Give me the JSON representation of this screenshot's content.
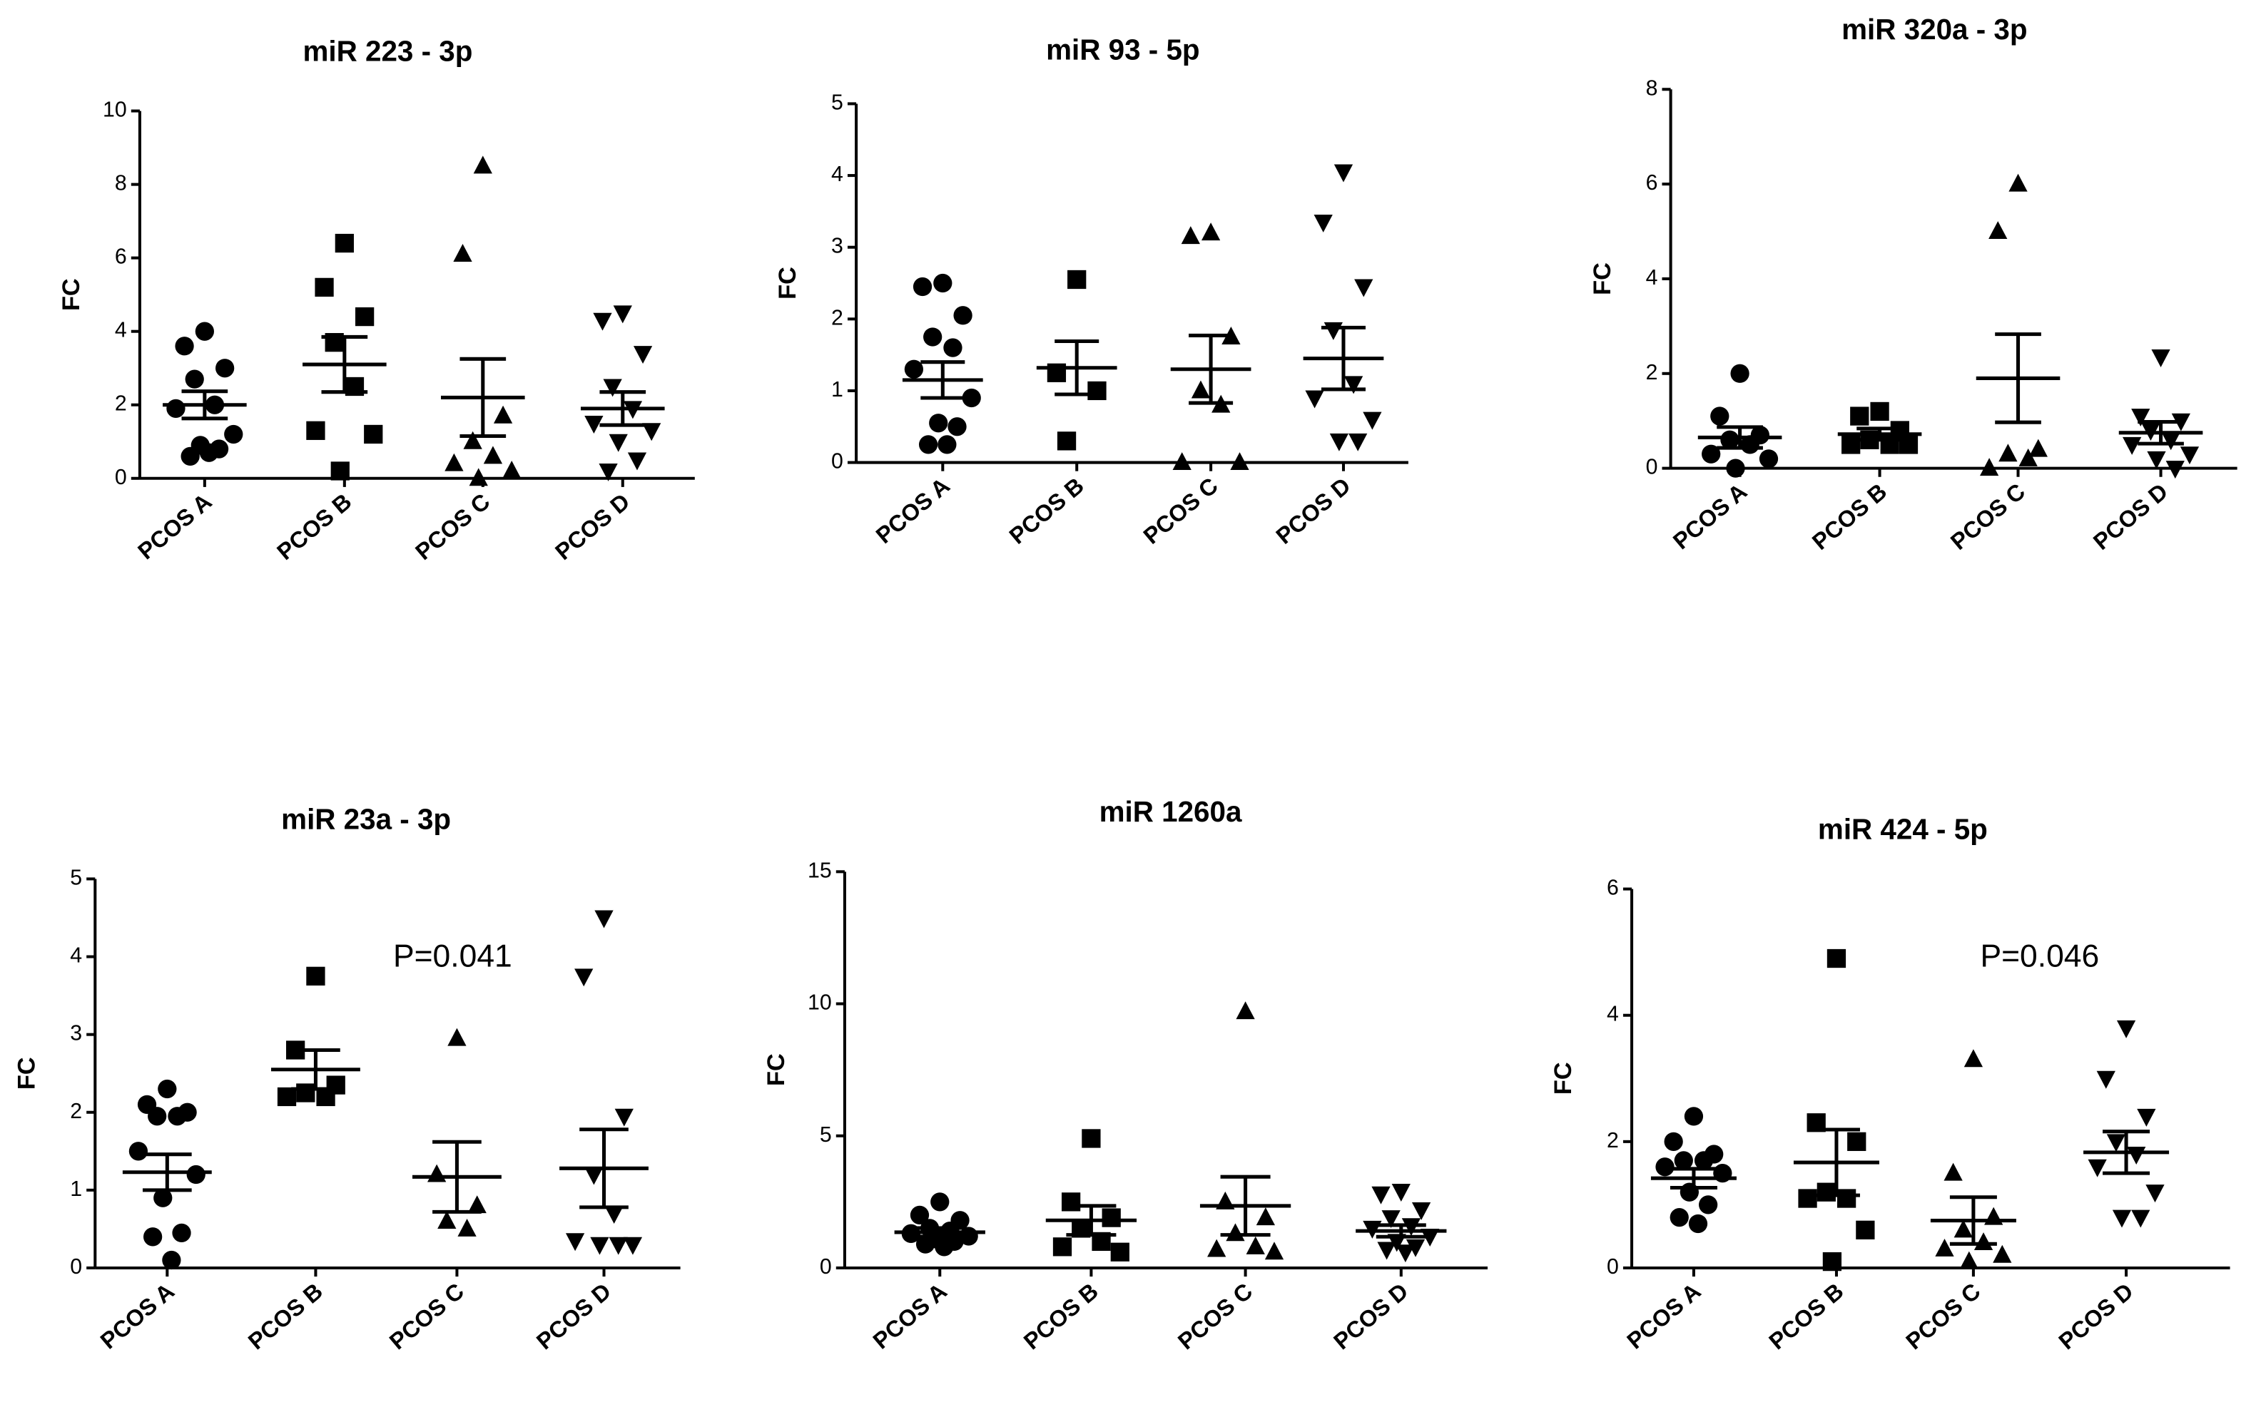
{
  "chart_data": [
    {
      "type": "scatter",
      "title": "miR 223 - 3p",
      "ylabel": "FC",
      "categories": [
        "PCOS A",
        "PCOS B",
        "PCOS C",
        "PCOS D"
      ],
      "markers": [
        "circle",
        "square",
        "triangle",
        "triangle-down"
      ],
      "color": "#000000",
      "points": [
        [
          4.0,
          3.6,
          3.0,
          2.7,
          2.0,
          1.9,
          1.2,
          0.9,
          0.8,
          0.6,
          0.7
        ],
        [
          6.4,
          5.2,
          4.4,
          3.7,
          2.5,
          1.3,
          1.2,
          0.2
        ],
        [
          8.5,
          6.1,
          1.7,
          1.0,
          0.6,
          0.4,
          0.2,
          0.0
        ],
        [
          4.5,
          4.3,
          3.4,
          2.5,
          1.9,
          1.5,
          1.3,
          1.0,
          0.5,
          0.2
        ]
      ],
      "means": [
        2.0,
        3.1,
        2.2,
        1.9
      ],
      "errors": [
        0.37,
        0.75,
        1.05,
        0.45
      ],
      "ylim": [
        0,
        10
      ],
      "yticks": [
        0,
        2,
        4,
        6,
        8,
        10
      ]
    },
    {
      "type": "scatter",
      "title": "miR 93 - 5p",
      "ylabel": "FC",
      "categories": [
        "PCOS A",
        "PCOS B",
        "PCOS C",
        "PCOS D"
      ],
      "markers": [
        "circle",
        "square",
        "triangle",
        "triangle-down"
      ],
      "color": "#000000",
      "points": [
        [
          2.5,
          2.45,
          2.05,
          1.75,
          1.6,
          1.3,
          0.9,
          0.55,
          0.5,
          0.25,
          0.25
        ],
        [
          2.55,
          1.25,
          1.0,
          0.3
        ],
        [
          3.2,
          3.15,
          1.75,
          1.0,
          0.8,
          0.0,
          0.0
        ],
        [
          4.05,
          3.35,
          2.45,
          1.85,
          1.1,
          0.9,
          0.6,
          0.3,
          0.3
        ]
      ],
      "means": [
        1.15,
        1.32,
        1.3,
        1.45
      ],
      "errors": [
        0.25,
        0.37,
        0.47,
        0.43
      ],
      "ylim": [
        0,
        5
      ],
      "yticks": [
        0,
        1,
        2,
        3,
        4,
        5
      ]
    },
    {
      "type": "scatter",
      "title": "miR 320a - 3p",
      "ylabel": "FC",
      "categories": [
        "PCOS A",
        "PCOS B",
        "PCOS C",
        "PCOS D"
      ],
      "markers": [
        "circle",
        "square",
        "triangle",
        "triangle-down"
      ],
      "color": "#000000",
      "points": [
        [
          2.0,
          1.1,
          0.7,
          0.6,
          0.5,
          0.3,
          0.2,
          0.0
        ],
        [
          1.2,
          1.1,
          0.8,
          0.6,
          0.5,
          0.5,
          0.5
        ],
        [
          6.0,
          5.0,
          0.4,
          0.3,
          0.2,
          0.0
        ],
        [
          2.35,
          1.1,
          1.0,
          0.8,
          0.6,
          0.5,
          0.3,
          0.2,
          0.0
        ]
      ],
      "means": [
        0.65,
        0.72,
        1.9,
        0.75
      ],
      "errors": [
        0.22,
        0.12,
        0.93,
        0.23
      ],
      "ylim": [
        0,
        8
      ],
      "yticks": [
        0,
        2,
        4,
        6,
        8
      ]
    },
    {
      "type": "scatter",
      "title": "miR 23a - 3p",
      "ylabel": "FC",
      "categories": [
        "PCOS A",
        "PCOS B",
        "PCOS C",
        "PCOS D"
      ],
      "markers": [
        "circle",
        "square",
        "triangle",
        "triangle-down"
      ],
      "color": "#000000",
      "points": [
        [
          2.3,
          2.1,
          2.0,
          1.95,
          1.95,
          1.5,
          1.2,
          0.9,
          0.45,
          0.4,
          0.1
        ],
        [
          3.75,
          2.8,
          2.35,
          2.25,
          2.2,
          2.2
        ],
        [
          2.95,
          1.2,
          0.8,
          0.6,
          0.5
        ],
        [
          4.5,
          3.75,
          1.95,
          1.2,
          0.7,
          0.35,
          0.3,
          0.3,
          0.3
        ]
      ],
      "means": [
        1.23,
        2.55,
        1.17,
        1.28
      ],
      "errors": [
        0.23,
        0.25,
        0.45,
        0.5
      ],
      "ylim": [
        0,
        5
      ],
      "yticks": [
        0,
        1,
        2,
        3,
        4,
        5
      ],
      "annotation": "P=0.041"
    },
    {
      "type": "scatter",
      "title": "miR 1260a",
      "ylabel": "FC",
      "categories": [
        "PCOS A",
        "PCOS B",
        "PCOS C",
        "PCOS D"
      ],
      "markers": [
        "circle",
        "square",
        "triangle",
        "triangle-down"
      ],
      "color": "#000000",
      "points": [
        [
          2.5,
          2.0,
          1.8,
          1.5,
          1.4,
          1.3,
          1.2,
          1.1,
          1.0,
          0.9,
          0.8
        ],
        [
          4.9,
          2.5,
          1.9,
          1.5,
          1.0,
          0.8,
          0.6
        ],
        [
          9.7,
          2.5,
          1.9,
          1.3,
          0.8,
          0.7,
          0.6
        ],
        [
          2.9,
          2.8,
          2.2,
          1.9,
          1.6,
          1.5,
          1.2,
          1.0,
          0.8,
          0.7,
          0.6
        ]
      ],
      "means": [
        1.35,
        1.8,
        2.35,
        1.4
      ],
      "errors": [
        0.16,
        0.55,
        1.1,
        0.22
      ],
      "ylim": [
        0,
        15
      ],
      "yticks": [
        0,
        5,
        10,
        15
      ]
    },
    {
      "type": "scatter",
      "title": "miR 424 - 5p",
      "ylabel": "FC",
      "categories": [
        "PCOS A",
        "PCOS B",
        "PCOS C",
        "PCOS D"
      ],
      "markers": [
        "circle",
        "square",
        "triangle",
        "triangle-down"
      ],
      "color": "#000000",
      "points": [
        [
          2.4,
          2.0,
          1.8,
          1.7,
          1.7,
          1.6,
          1.5,
          1.2,
          1.0,
          0.8,
          0.7
        ],
        [
          4.9,
          2.3,
          2.0,
          1.2,
          1.1,
          1.1,
          0.6,
          0.1
        ],
        [
          3.3,
          1.5,
          0.8,
          0.6,
          0.4,
          0.3,
          0.2,
          0.1
        ],
        [
          3.8,
          3.0,
          2.4,
          2.0,
          1.8,
          1.6,
          1.2,
          0.8,
          0.8
        ]
      ],
      "means": [
        1.42,
        1.67,
        0.75,
        1.83
      ],
      "errors": [
        0.15,
        0.52,
        0.37,
        0.33
      ],
      "ylim": [
        0,
        6
      ],
      "yticks": [
        0,
        2,
        4,
        6
      ],
      "annotation": "P=0.046"
    }
  ]
}
